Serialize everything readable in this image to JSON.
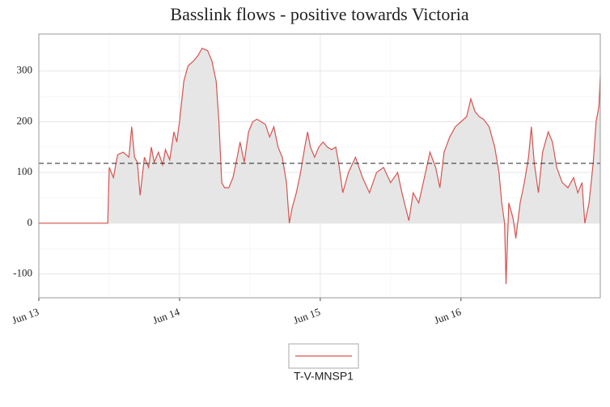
{
  "chart_data": {
    "type": "line",
    "title": "Basslink flows - positive towards Victoria",
    "xlim": [
      0,
      3.99
    ],
    "xticks": [
      {
        "value": 0,
        "label": "Jun 13"
      },
      {
        "value": 1,
        "label": "Jun 14"
      },
      {
        "value": 2,
        "label": "Jun 15"
      },
      {
        "value": 3,
        "label": "Jun 16"
      }
    ],
    "ylim": [
      -147,
      373
    ],
    "yticks": [
      -100,
      0,
      100,
      200,
      300
    ],
    "grid": true,
    "hline": 118,
    "area": true,
    "x": [
      0,
      0.49,
      0.5,
      0.53,
      0.56,
      0.6,
      0.64,
      0.66,
      0.68,
      0.7,
      0.72,
      0.75,
      0.78,
      0.8,
      0.82,
      0.85,
      0.88,
      0.9,
      0.93,
      0.96,
      0.98,
      1.0,
      1.03,
      1.06,
      1.1,
      1.13,
      1.16,
      1.2,
      1.23,
      1.26,
      1.28,
      1.3,
      1.32,
      1.35,
      1.38,
      1.41,
      1.43,
      1.46,
      1.49,
      1.52,
      1.55,
      1.58,
      1.61,
      1.64,
      1.67,
      1.7,
      1.73,
      1.76,
      1.78,
      1.8,
      1.83,
      1.86,
      1.89,
      1.91,
      1.93,
      1.96,
      1.99,
      2.02,
      2.05,
      2.08,
      2.11,
      2.13,
      2.16,
      2.2,
      2.25,
      2.3,
      2.35,
      2.4,
      2.45,
      2.5,
      2.55,
      2.58,
      2.63,
      2.66,
      2.7,
      2.74,
      2.78,
      2.82,
      2.85,
      2.88,
      2.92,
      2.96,
      3.0,
      3.04,
      3.07,
      3.1,
      3.13,
      3.16,
      3.2,
      3.24,
      3.27,
      3.29,
      3.31,
      3.32,
      3.34,
      3.37,
      3.39,
      3.42,
      3.45,
      3.48,
      3.5,
      3.52,
      3.55,
      3.58,
      3.62,
      3.65,
      3.68,
      3.72,
      3.76,
      3.8,
      3.83,
      3.86,
      3.88,
      3.91,
      3.94,
      3.96,
      3.98,
      3.99
    ],
    "series": [
      {
        "name": "T-V-MNSP1",
        "color": "#d9534f",
        "values": [
          0,
          0,
          110,
          90,
          135,
          140,
          130,
          190,
          130,
          120,
          55,
          130,
          110,
          150,
          120,
          140,
          115,
          145,
          125,
          180,
          160,
          200,
          280,
          310,
          320,
          330,
          345,
          340,
          320,
          280,
          200,
          80,
          70,
          70,
          90,
          130,
          160,
          120,
          180,
          200,
          205,
          200,
          195,
          170,
          190,
          150,
          130,
          80,
          0,
          30,
          60,
          100,
          150,
          180,
          150,
          130,
          150,
          160,
          150,
          145,
          150,
          120,
          60,
          100,
          130,
          90,
          60,
          100,
          110,
          80,
          100,
          60,
          5,
          60,
          40,
          90,
          140,
          110,
          70,
          140,
          170,
          190,
          200,
          210,
          245,
          220,
          210,
          205,
          190,
          150,
          100,
          40,
          0,
          -120,
          40,
          10,
          -30,
          40,
          80,
          130,
          190,
          120,
          60,
          140,
          180,
          160,
          110,
          80,
          70,
          90,
          60,
          80,
          0,
          40,
          120,
          200,
          230,
          290
        ]
      }
    ]
  }
}
